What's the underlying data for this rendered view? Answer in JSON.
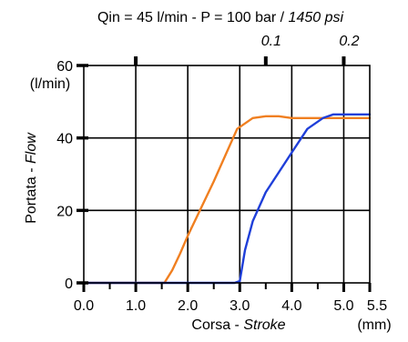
{
  "chart_data": {
    "type": "line",
    "title": {
      "text": "Qin = 45 l/min - P = 100 bar / ",
      "italic_text": "1450 psi"
    },
    "top_axis": {
      "ticks": [
        {
          "value": 1.0,
          "label": ""
        },
        {
          "value": 3.5,
          "label": "0.1"
        },
        {
          "value": 5.0,
          "label": "0.2"
        }
      ]
    },
    "xlabel": {
      "text": "Corsa - ",
      "italic_text": "Stroke"
    },
    "x_unit": "(mm)",
    "ylabel": {
      "text": "Portata - ",
      "italic_text": "Flow"
    },
    "y_unit": "(l/min)",
    "xlim": [
      0,
      5.5
    ],
    "ylim": [
      0,
      60
    ],
    "x_ticks": [
      {
        "value": 0.0,
        "label": "0.0"
      },
      {
        "value": 1.0,
        "label": "1.0"
      },
      {
        "value": 2.0,
        "label": "2.0"
      },
      {
        "value": 3.0,
        "label": "3.0"
      },
      {
        "value": 4.0,
        "label": "4.0"
      },
      {
        "value": 5.0,
        "label": "5.0"
      },
      {
        "value": 5.5,
        "label": "5.5"
      }
    ],
    "x_minor_ticks": [
      0.5,
      1.5,
      2.5,
      3.5,
      4.5
    ],
    "y_ticks": [
      {
        "value": 0,
        "label": "0"
      },
      {
        "value": 20,
        "label": "20"
      },
      {
        "value": 40,
        "label": "40"
      },
      {
        "value": 60,
        "label": "60"
      }
    ],
    "grid": true,
    "series": [
      {
        "color": "#f07f20",
        "x": [
          0.0,
          1.55,
          1.7,
          1.85,
          2.0,
          2.5,
          2.95,
          3.25,
          3.5,
          3.75,
          4.0,
          4.5,
          5.0,
          5.5
        ],
        "y": [
          0.0,
          0.0,
          3.5,
          8.0,
          13.0,
          28.0,
          42.5,
          45.5,
          46.0,
          46.0,
          45.5,
          45.5,
          45.5,
          45.5
        ]
      },
      {
        "color": "#1f3fd9",
        "x": [
          0.0,
          2.9,
          3.0,
          3.1,
          3.25,
          3.5,
          3.75,
          4.0,
          4.3,
          4.6,
          4.8,
          5.0,
          5.5
        ],
        "y": [
          0.0,
          0.0,
          0.5,
          9.0,
          17.0,
          25.0,
          30.5,
          36.0,
          42.5,
          45.5,
          46.5,
          46.5,
          46.5
        ]
      }
    ]
  }
}
